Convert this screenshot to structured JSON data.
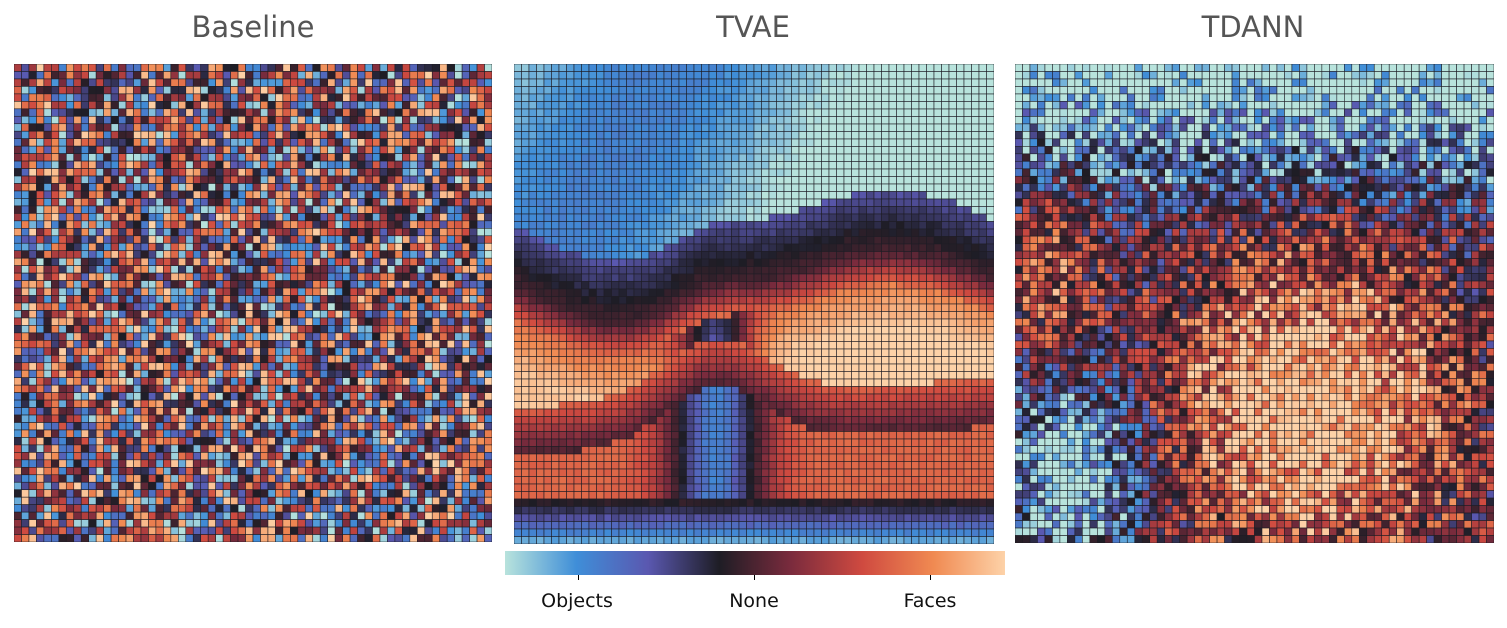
{
  "chart_data": [
    {
      "type": "heatmap",
      "title": "Baseline",
      "grid": true,
      "rows": 64,
      "cols": 64,
      "pattern": "random, no spatial organization"
    },
    {
      "type": "heatmap",
      "title": "TVAE",
      "grid": true,
      "rows": 64,
      "cols": 64,
      "pattern": "smooth bands: objects (top), none, faces (middle), objects (bottom)"
    },
    {
      "type": "heatmap",
      "title": "TDANN",
      "grid": true,
      "rows": 64,
      "cols": 64,
      "pattern": "noisy clusters: objects top and left, faces center-bottom-right"
    }
  ],
  "colorbar": {
    "colors": [
      "#b8e3dc",
      "#3f8ed8",
      "#5a58b0",
      "#1e1d25",
      "#7a2b3d",
      "#cf4a40",
      "#f08a52",
      "#fdd2a8"
    ],
    "ticks": [
      {
        "label": "Objects",
        "value": -1
      },
      {
        "label": "None",
        "value": 0
      },
      {
        "label": "Faces",
        "value": 1
      }
    ]
  }
}
